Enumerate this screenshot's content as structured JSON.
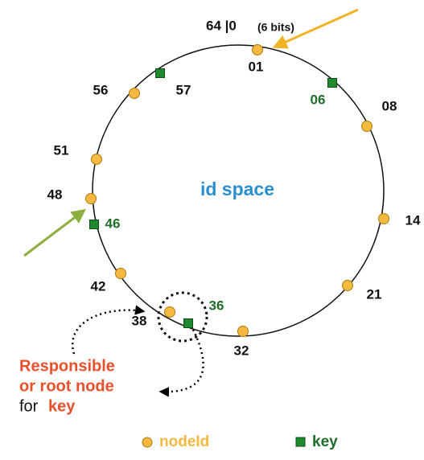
{
  "header": {
    "title": "64 |0",
    "subtitle": "(6 bits)"
  },
  "center_label": "id space",
  "nodes": [
    {
      "label": "01"
    },
    {
      "label": "08"
    },
    {
      "label": "14"
    },
    {
      "label": "21"
    },
    {
      "label": "32"
    },
    {
      "label": "38"
    },
    {
      "label": "42"
    },
    {
      "label": "48"
    },
    {
      "label": "51"
    },
    {
      "label": "56"
    }
  ],
  "keys": [
    {
      "label": "57"
    },
    {
      "label": "06"
    },
    {
      "label": "46"
    },
    {
      "label": "36"
    }
  ],
  "annotation": {
    "line1": "Responsible",
    "line2": "or root node",
    "line3_prefix": "for",
    "line3_key": "key"
  },
  "legend": {
    "node": "nodeId",
    "key": "key"
  }
}
